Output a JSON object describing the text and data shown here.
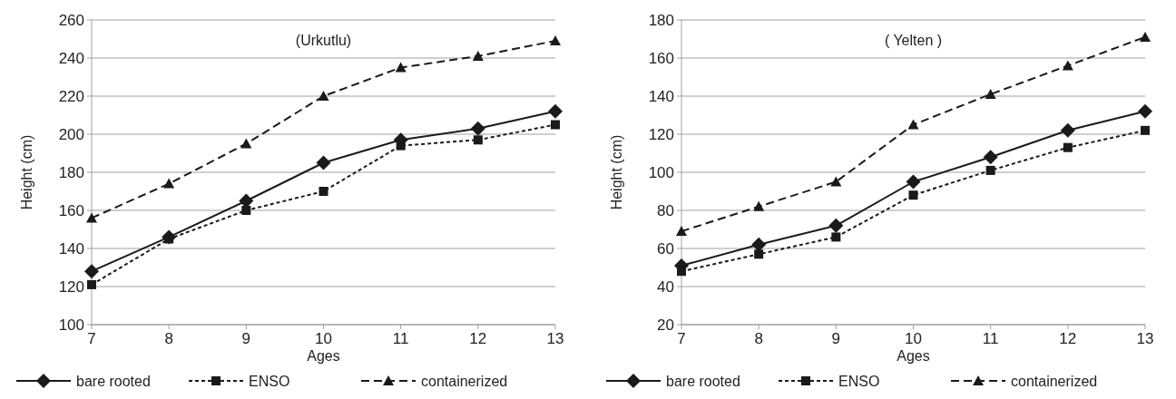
{
  "chart_data": [
    {
      "type": "line",
      "title": "(Urkutlu)",
      "xlabel": "Ages",
      "ylabel": "Height (cm)",
      "x": [
        7,
        8,
        9,
        10,
        11,
        12,
        13
      ],
      "xlim": [
        7,
        13
      ],
      "xticks": [
        7,
        8,
        9,
        10,
        11,
        12,
        13
      ],
      "ylim": [
        100,
        260
      ],
      "yticks": [
        100,
        120,
        140,
        160,
        180,
        200,
        220,
        240,
        260
      ],
      "grid": "y",
      "legend": "bottom",
      "series": [
        {
          "name": "bare rooted",
          "color": "#1a1a1a",
          "marker": "diamond",
          "line_style": "solid",
          "values": [
            128,
            146,
            165,
            185,
            197,
            203,
            212
          ]
        },
        {
          "name": "ENSO",
          "color": "#1a1a1a",
          "marker": "square",
          "line_style": "dotted",
          "values": [
            121,
            145,
            160,
            170,
            194,
            197,
            205
          ]
        },
        {
          "name": "containerized",
          "color": "#1a1a1a",
          "marker": "triangle",
          "line_style": "dashed",
          "values": [
            156,
            174,
            195,
            220,
            235,
            241,
            249
          ]
        }
      ]
    },
    {
      "type": "line",
      "title": "( Yelten )",
      "xlabel": "Ages",
      "ylabel": "Height (cm)",
      "x": [
        7,
        8,
        9,
        10,
        11,
        12,
        13
      ],
      "xlim": [
        7,
        13
      ],
      "xticks": [
        7,
        8,
        9,
        10,
        11,
        12,
        13
      ],
      "ylim": [
        20,
        180
      ],
      "yticks": [
        20,
        40,
        60,
        80,
        100,
        120,
        140,
        160,
        180
      ],
      "grid": "y",
      "legend": "bottom",
      "series": [
        {
          "name": "bare rooted",
          "color": "#1a1a1a",
          "marker": "diamond",
          "line_style": "solid",
          "values": [
            51,
            62,
            72,
            95,
            108,
            122,
            132
          ]
        },
        {
          "name": "ENSO",
          "color": "#1a1a1a",
          "marker": "square",
          "line_style": "dotted",
          "values": [
            48,
            57,
            66,
            88,
            101,
            113,
            122
          ]
        },
        {
          "name": "containerized",
          "color": "#1a1a1a",
          "marker": "triangle",
          "line_style": "dashed",
          "values": [
            69,
            82,
            95,
            125,
            141,
            156,
            171
          ]
        }
      ]
    }
  ]
}
